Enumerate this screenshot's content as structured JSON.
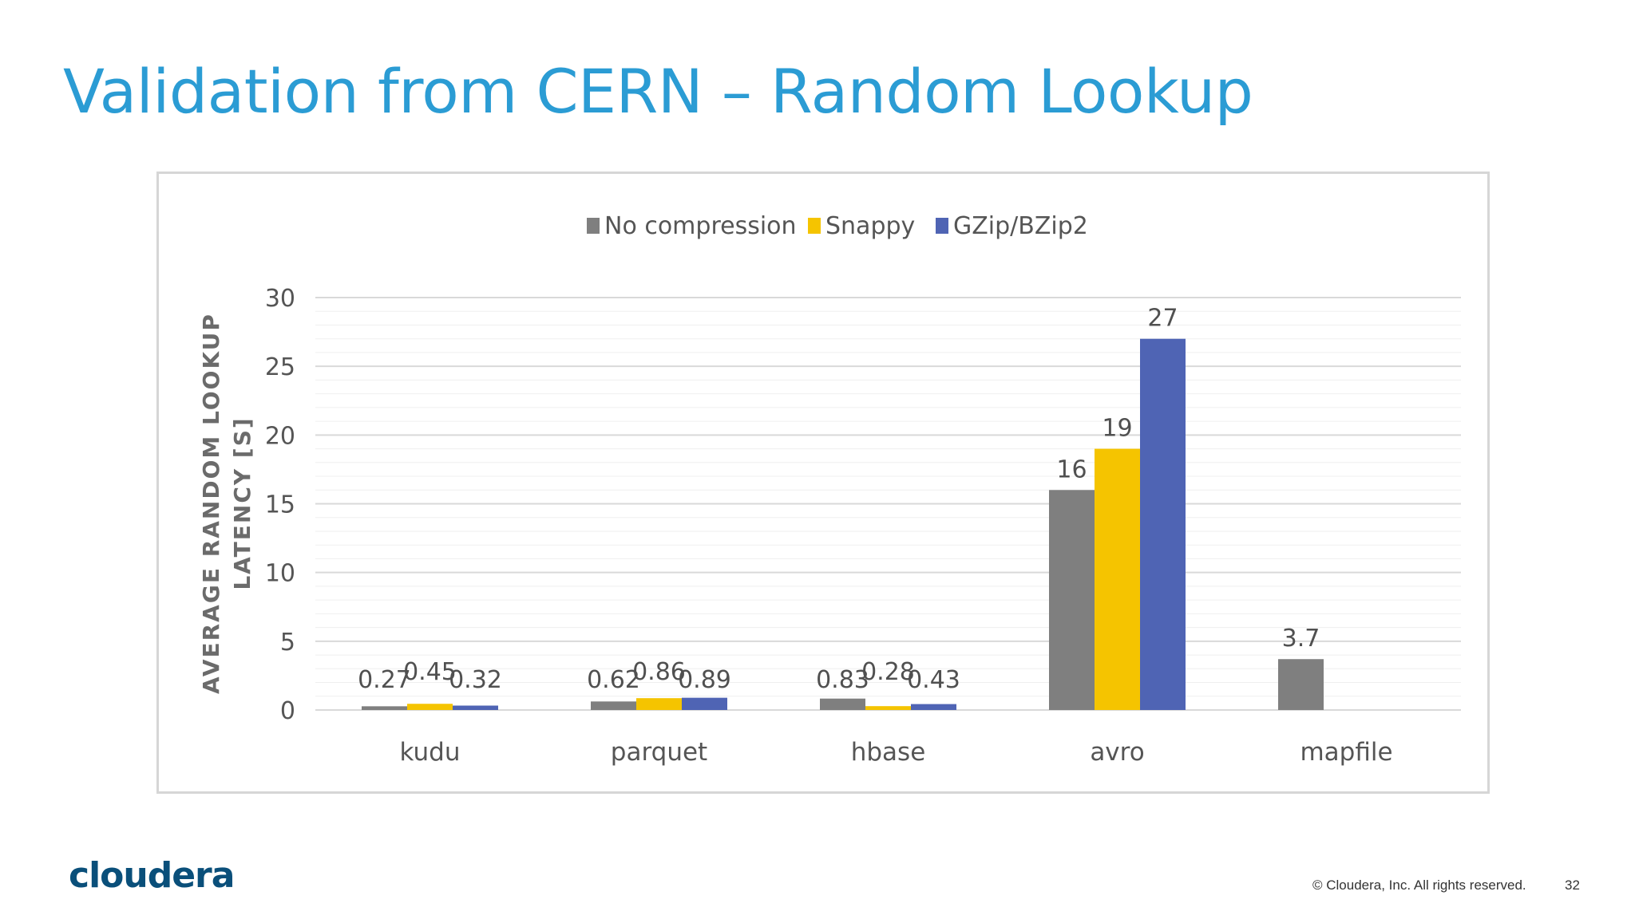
{
  "slide": {
    "title": "Validation from CERN – Random Lookup",
    "logo_text": "cloudera",
    "copyright": "© Cloudera, Inc. All rights reserved.",
    "page_number": "32"
  },
  "chart_data": {
    "type": "bar",
    "title": "",
    "xlabel": "",
    "ylabel_lines": [
      "AVERAGE RANDOM LOOKUP",
      "LATENCY [S]"
    ],
    "categories": [
      "kudu",
      "parquet",
      "hbase",
      "avro",
      "mapfile"
    ],
    "series": [
      {
        "name": "No compression",
        "color": "#7f7f7f",
        "values": [
          0.27,
          0.62,
          0.83,
          16,
          3.7
        ]
      },
      {
        "name": "Snappy",
        "color": "#f5c400",
        "values": [
          0.45,
          0.86,
          0.28,
          19,
          null
        ]
      },
      {
        "name": "GZip/BZip2",
        "color": "#4f64b4",
        "values": [
          0.32,
          0.89,
          0.43,
          27,
          null
        ]
      }
    ],
    "ylim": [
      0,
      30
    ],
    "yticks": [
      0,
      5,
      10,
      15,
      20,
      25,
      30
    ],
    "grid": true,
    "legend_position": "top-center"
  }
}
